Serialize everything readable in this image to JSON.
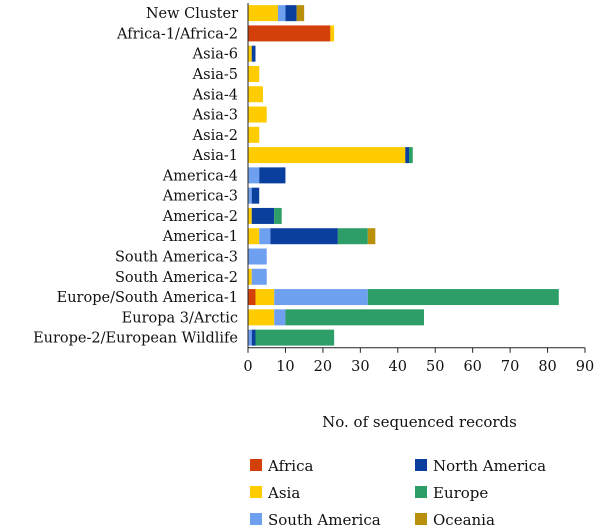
{
  "chart_data": {
    "type": "bar",
    "orientation": "horizontal",
    "stacked": true,
    "categories": [
      "New Cluster",
      "Africa-1/Africa-2",
      "Asia-6",
      "Asia-5",
      "Asia-4",
      "Asia-3",
      "Asia-2",
      "Asia-1",
      "America-4",
      "America-3",
      "America-2",
      "America-1",
      "South America-3",
      "South America-2",
      "Europe/South America-1",
      "Europa 3/Arctic",
      "Europe-2/European Wildlife"
    ],
    "series": [
      {
        "name": "Africa",
        "color": "#d4400a",
        "values": [
          0,
          22,
          0,
          0,
          0,
          0,
          0,
          0,
          0,
          0,
          0,
          0,
          0,
          0,
          2,
          0,
          0
        ]
      },
      {
        "name": "Asia",
        "color": "#ffcc00",
        "values": [
          8,
          1,
          1,
          3,
          4,
          5,
          3,
          42,
          0,
          0,
          1,
          3,
          0,
          1,
          5,
          7,
          0
        ]
      },
      {
        "name": "South America",
        "color": "#6fa0f0",
        "values": [
          2,
          0,
          0,
          0,
          0,
          0,
          0,
          0,
          3,
          1,
          0,
          3,
          5,
          4,
          25,
          3,
          1
        ]
      },
      {
        "name": "North America",
        "color": "#0a3f9e",
        "values": [
          3,
          0,
          1,
          0,
          0,
          0,
          0,
          1,
          7,
          2,
          6,
          18,
          0,
          0,
          0,
          0,
          1
        ]
      },
      {
        "name": "Europe",
        "color": "#2e9e68",
        "values": [
          0,
          0,
          0,
          0,
          0,
          0,
          0,
          1,
          0,
          0,
          2,
          8,
          0,
          0,
          51,
          37,
          21
        ]
      },
      {
        "name": "Oceania",
        "color": "#b8900c",
        "values": [
          2,
          0,
          0,
          0,
          0,
          0,
          0,
          0,
          0,
          0,
          0,
          2,
          0,
          0,
          0,
          0,
          0
        ]
      }
    ],
    "xlabel": "No. of sequenced records",
    "ylabel": "",
    "title": "",
    "xlim": [
      0,
      90
    ],
    "xticks": [
      0,
      10,
      20,
      30,
      40,
      50,
      60,
      70,
      80,
      90
    ],
    "grid": false,
    "legend": {
      "placement": "bottom",
      "order": [
        "Africa",
        "North America",
        "Asia",
        "Europe",
        "South America",
        "Oceania"
      ]
    }
  }
}
